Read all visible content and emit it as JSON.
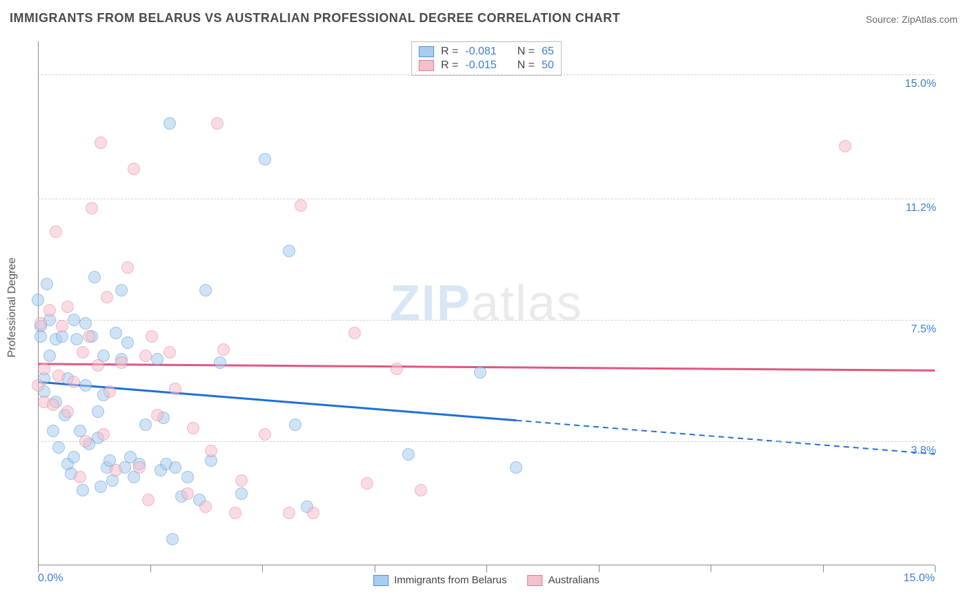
{
  "title": "IMMIGRANTS FROM BELARUS VS AUSTRALIAN PROFESSIONAL DEGREE CORRELATION CHART",
  "source_label": "Source: ZipAtlas.com",
  "watermark": {
    "part1": "ZIP",
    "part2": "atlas"
  },
  "y_axis_title": "Professional Degree",
  "chart": {
    "type": "scatter",
    "xlim": [
      0,
      15
    ],
    "ylim": [
      0,
      16
    ],
    "x_ticks_major": [
      0,
      15
    ],
    "x_ticks_minor": [
      7.5
    ],
    "x_tick_labels": {
      "0": "0.0%",
      "15": "15.0%"
    },
    "y_grid": [
      {
        "v": 3.8,
        "label": "3.8%"
      },
      {
        "v": 7.5,
        "label": "7.5%"
      },
      {
        "v": 11.2,
        "label": "11.2%"
      },
      {
        "v": 15.0,
        "label": "15.0%"
      }
    ],
    "grid_color": "#d0d0d0",
    "background_color": "#ffffff",
    "axis_color": "#888888",
    "tick_label_color": "#3b7dd8",
    "title_fontsize": 18,
    "label_fontsize": 16,
    "marker_radius": 9,
    "marker_opacity": 0.55,
    "series": [
      {
        "key": "belarus",
        "label": "Immigrants from Belarus",
        "fill": "#a9cdee",
        "stroke": "#4a90d9",
        "line_color": "#1e6fd9",
        "R": "-0.081",
        "N": "65",
        "trend": {
          "x1": 0,
          "y1": 5.6,
          "x2": 15,
          "y2": 3.4,
          "solid_until_x": 8.0
        },
        "points": [
          [
            0.0,
            8.1
          ],
          [
            0.05,
            7.3
          ],
          [
            0.05,
            7.0
          ],
          [
            0.1,
            5.7
          ],
          [
            0.1,
            5.3
          ],
          [
            0.15,
            8.6
          ],
          [
            0.2,
            6.4
          ],
          [
            0.2,
            7.5
          ],
          [
            0.25,
            4.1
          ],
          [
            0.3,
            5.0
          ],
          [
            0.3,
            6.9
          ],
          [
            0.35,
            3.6
          ],
          [
            0.4,
            7.0
          ],
          [
            0.45,
            4.6
          ],
          [
            0.5,
            3.1
          ],
          [
            0.5,
            5.7
          ],
          [
            0.55,
            2.8
          ],
          [
            0.6,
            7.5
          ],
          [
            0.6,
            3.3
          ],
          [
            0.65,
            6.9
          ],
          [
            0.7,
            4.1
          ],
          [
            0.75,
            2.3
          ],
          [
            0.8,
            5.5
          ],
          [
            0.8,
            7.4
          ],
          [
            0.85,
            3.7
          ],
          [
            0.9,
            7.0
          ],
          [
            0.95,
            8.8
          ],
          [
            1.0,
            3.9
          ],
          [
            1.0,
            4.7
          ],
          [
            1.05,
            2.4
          ],
          [
            1.1,
            6.4
          ],
          [
            1.1,
            5.2
          ],
          [
            1.15,
            3.0
          ],
          [
            1.2,
            3.2
          ],
          [
            1.25,
            2.6
          ],
          [
            1.3,
            7.1
          ],
          [
            1.4,
            6.3
          ],
          [
            1.4,
            8.4
          ],
          [
            1.45,
            3.0
          ],
          [
            1.5,
            6.8
          ],
          [
            1.55,
            3.3
          ],
          [
            1.6,
            2.7
          ],
          [
            1.7,
            3.1
          ],
          [
            1.8,
            4.3
          ],
          [
            2.0,
            6.3
          ],
          [
            2.05,
            2.9
          ],
          [
            2.1,
            4.5
          ],
          [
            2.15,
            3.1
          ],
          [
            2.2,
            13.5
          ],
          [
            2.25,
            0.8
          ],
          [
            2.3,
            3.0
          ],
          [
            2.4,
            2.1
          ],
          [
            2.5,
            2.7
          ],
          [
            2.7,
            2.0
          ],
          [
            2.8,
            8.4
          ],
          [
            2.9,
            3.2
          ],
          [
            3.05,
            6.2
          ],
          [
            3.4,
            2.2
          ],
          [
            3.8,
            12.4
          ],
          [
            4.2,
            9.6
          ],
          [
            4.3,
            4.3
          ],
          [
            4.5,
            1.8
          ],
          [
            6.2,
            3.4
          ],
          [
            7.4,
            5.9
          ],
          [
            8.0,
            3.0
          ]
        ]
      },
      {
        "key": "australians",
        "label": "Australians",
        "fill": "#f5c0cb",
        "stroke": "#e77a94",
        "line_color": "#e0567e",
        "R": "-0.015",
        "N": "50",
        "trend": {
          "x1": 0,
          "y1": 6.15,
          "x2": 15,
          "y2": 5.95,
          "solid_until_x": 15
        },
        "points": [
          [
            0.0,
            5.5
          ],
          [
            0.05,
            7.4
          ],
          [
            0.1,
            6.0
          ],
          [
            0.1,
            5.0
          ],
          [
            0.2,
            7.8
          ],
          [
            0.25,
            4.9
          ],
          [
            0.3,
            10.2
          ],
          [
            0.35,
            5.8
          ],
          [
            0.4,
            7.3
          ],
          [
            0.5,
            4.7
          ],
          [
            0.5,
            7.9
          ],
          [
            0.6,
            5.6
          ],
          [
            0.7,
            2.7
          ],
          [
            0.75,
            6.5
          ],
          [
            0.8,
            3.8
          ],
          [
            0.85,
            7.0
          ],
          [
            0.9,
            10.9
          ],
          [
            1.0,
            6.1
          ],
          [
            1.05,
            12.9
          ],
          [
            1.1,
            4.0
          ],
          [
            1.15,
            8.2
          ],
          [
            1.2,
            5.3
          ],
          [
            1.3,
            2.9
          ],
          [
            1.4,
            6.2
          ],
          [
            1.5,
            9.1
          ],
          [
            1.6,
            12.1
          ],
          [
            1.7,
            3.0
          ],
          [
            1.8,
            6.4
          ],
          [
            1.85,
            2.0
          ],
          [
            1.9,
            7.0
          ],
          [
            2.0,
            4.6
          ],
          [
            2.2,
            6.5
          ],
          [
            2.3,
            5.4
          ],
          [
            2.5,
            2.2
          ],
          [
            2.6,
            4.2
          ],
          [
            2.8,
            1.8
          ],
          [
            2.9,
            3.5
          ],
          [
            3.0,
            13.5
          ],
          [
            3.1,
            6.6
          ],
          [
            3.3,
            1.6
          ],
          [
            3.4,
            2.6
          ],
          [
            3.8,
            4.0
          ],
          [
            4.2,
            1.6
          ],
          [
            4.4,
            11.0
          ],
          [
            4.6,
            1.6
          ],
          [
            5.3,
            7.1
          ],
          [
            5.5,
            2.5
          ],
          [
            6.0,
            6.0
          ],
          [
            6.4,
            2.3
          ],
          [
            13.5,
            12.8
          ]
        ]
      }
    ]
  },
  "legend_top": {
    "R_label": "R =",
    "N_label": "N ="
  }
}
